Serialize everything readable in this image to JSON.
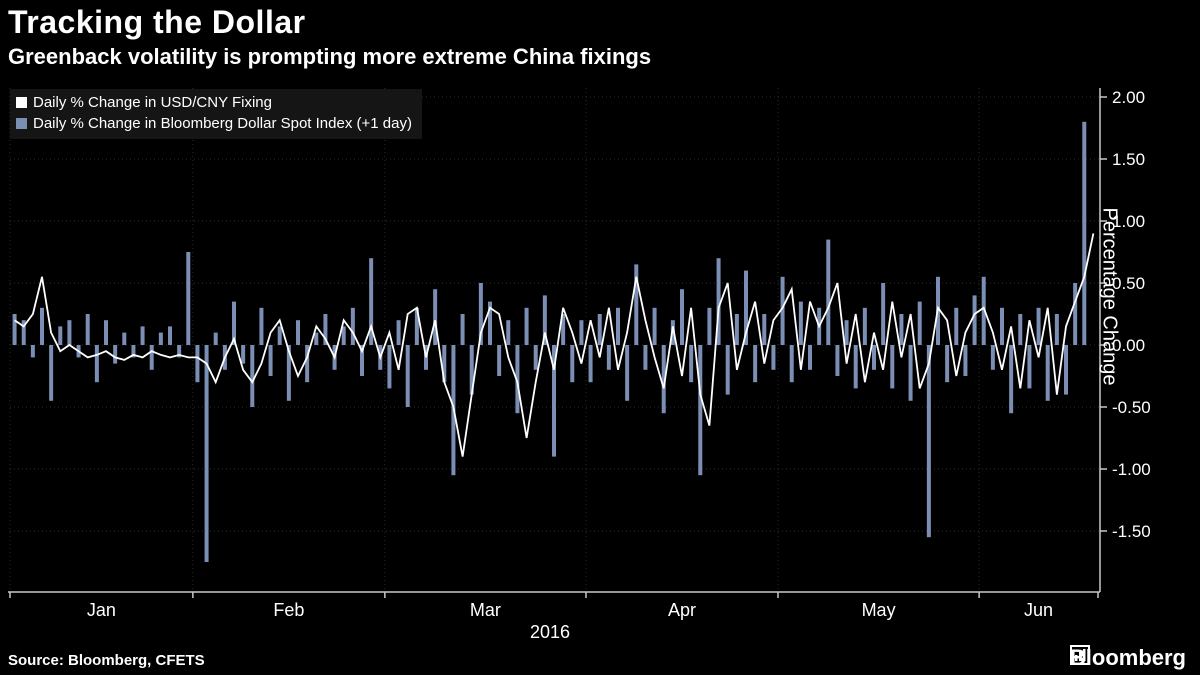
{
  "title": "Tracking the Dollar",
  "subtitle": "Greenback volatility is prompting more extreme China fixings",
  "source": "Source: Bloomberg, CFETS",
  "logo_text": "Bloomberg",
  "colors": {
    "background": "#000000",
    "bar": "#7b8fb4",
    "line": "#ffffff",
    "grid": "#2d2d2d",
    "axis": "#c8c8c8",
    "text": "#ffffff",
    "legend_bg": "#161616"
  },
  "legend": [
    {
      "label": "Daily % Change in USD/CNY Fixing",
      "swatch": "#ffffff"
    },
    {
      "label": "Daily % Change in Bloomberg Dollar Spot Index (+1 day)",
      "swatch": "#7b8fb4"
    }
  ],
  "chart_data": {
    "type": "bar+line",
    "title": "Tracking the Dollar",
    "xlabel": "2016",
    "ylabel": "Percentage Change",
    "ylim": [
      -2.0,
      2.07
    ],
    "yticks": [
      2.0,
      1.5,
      1.0,
      0.5,
      0.0,
      -0.5,
      -1.0,
      -1.5
    ],
    "ytick_labels": [
      "2.00",
      "1.50",
      "1.00",
      "0.50",
      "0.00",
      "-0.50",
      "-1.00",
      "-1.50"
    ],
    "year_label": "2016",
    "months": [
      {
        "label": "Jan",
        "days": 20
      },
      {
        "label": "Feb",
        "days": 21
      },
      {
        "label": "Mar",
        "days": 22
      },
      {
        "label": "Apr",
        "days": 21
      },
      {
        "label": "May",
        "days": 22
      },
      {
        "label": "Jun",
        "days": 13
      }
    ],
    "legend_position": "top-left",
    "grid": true,
    "series": [
      {
        "name": "Daily % Change in Bloomberg Dollar Spot Index (+1 day)",
        "type": "bar",
        "color": "#7b8fb4",
        "values": [
          0.25,
          0.2,
          -0.1,
          0.3,
          -0.45,
          0.15,
          0.2,
          -0.1,
          0.25,
          -0.3,
          0.2,
          -0.15,
          0.1,
          -0.1,
          0.15,
          -0.2,
          0.1,
          0.15,
          -0.1,
          0.75,
          -0.3,
          -1.75,
          0.1,
          -0.2,
          0.35,
          -0.15,
          -0.5,
          0.3,
          -0.25,
          0.15,
          -0.45,
          0.2,
          -0.3,
          0.1,
          0.25,
          -0.2,
          0.15,
          0.3,
          -0.25,
          0.7,
          -0.2,
          -0.35,
          0.2,
          -0.5,
          0.3,
          -0.2,
          0.45,
          -0.3,
          -1.05,
          0.25,
          -0.4,
          0.5,
          0.35,
          -0.25,
          0.2,
          -0.55,
          0.3,
          -0.2,
          0.4,
          -0.9,
          0.25,
          -0.3,
          0.2,
          -0.3,
          0.25,
          -0.2,
          0.3,
          -0.45,
          0.65,
          -0.2,
          0.3,
          -0.55,
          0.2,
          0.45,
          -0.3,
          -1.05,
          0.3,
          0.7,
          -0.4,
          0.25,
          0.6,
          -0.3,
          0.25,
          -0.2,
          0.55,
          -0.3,
          0.35,
          -0.2,
          0.3,
          0.85,
          -0.25,
          0.2,
          -0.35,
          0.3,
          -0.2,
          0.5,
          -0.35,
          0.25,
          -0.45,
          0.35,
          -1.55,
          0.55,
          -0.3,
          0.3,
          -0.25,
          0.4,
          0.55,
          -0.2,
          0.3,
          -0.55,
          0.25,
          -0.35,
          0.3,
          -0.45,
          0.25,
          -0.4,
          0.5,
          1.8,
          0.0
        ]
      },
      {
        "name": "Daily % Change in USD/CNY Fixing",
        "type": "line",
        "color": "#ffffff",
        "values": [
          0.2,
          0.15,
          0.25,
          0.55,
          0.1,
          -0.05,
          0.0,
          -0.05,
          -0.1,
          -0.08,
          -0.05,
          -0.1,
          -0.12,
          -0.08,
          -0.1,
          -0.05,
          -0.08,
          -0.1,
          -0.08,
          -0.1,
          -0.1,
          -0.15,
          -0.3,
          -0.1,
          0.05,
          -0.2,
          -0.3,
          -0.15,
          0.1,
          0.2,
          -0.05,
          -0.25,
          -0.1,
          0.15,
          0.05,
          -0.1,
          0.2,
          0.1,
          -0.05,
          0.15,
          -0.1,
          0.1,
          -0.2,
          0.25,
          0.3,
          -0.1,
          0.2,
          -0.3,
          -0.5,
          -0.9,
          -0.4,
          0.1,
          0.3,
          0.25,
          -0.1,
          -0.3,
          -0.75,
          -0.3,
          0.1,
          -0.2,
          0.3,
          0.1,
          -0.15,
          0.2,
          -0.1,
          0.3,
          -0.2,
          0.1,
          0.55,
          0.2,
          -0.1,
          -0.35,
          0.15,
          -0.25,
          0.3,
          -0.4,
          -0.65,
          0.3,
          0.5,
          -0.2,
          0.1,
          0.35,
          -0.15,
          0.2,
          0.3,
          0.45,
          -0.2,
          0.35,
          0.15,
          0.3,
          0.5,
          -0.15,
          0.25,
          -0.3,
          0.1,
          -0.2,
          0.35,
          -0.1,
          0.25,
          -0.35,
          -0.15,
          0.3,
          0.2,
          -0.25,
          0.1,
          0.25,
          0.3,
          0.1,
          -0.2,
          0.15,
          -0.35,
          0.2,
          -0.1,
          0.3,
          -0.4,
          0.15,
          0.35,
          0.55,
          0.9
        ]
      }
    ]
  }
}
